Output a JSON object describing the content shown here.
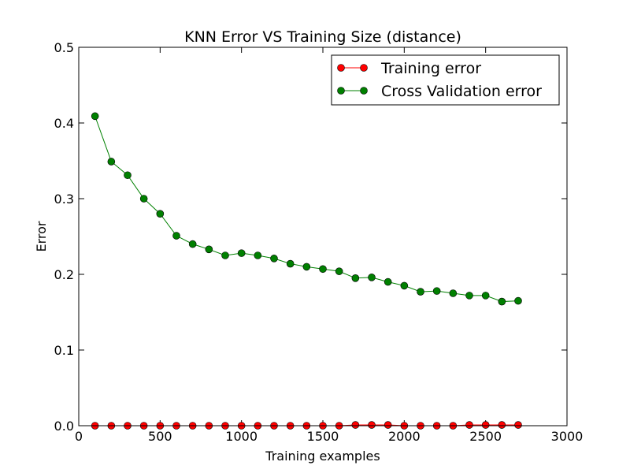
{
  "chart_data": {
    "type": "line",
    "title": "KNN Error VS Training Size (distance)",
    "xlabel": "Training examples",
    "ylabel": "Error",
    "xlim": [
      0,
      3000
    ],
    "ylim": [
      0,
      0.5
    ],
    "xticks": [
      0,
      500,
      1000,
      1500,
      2000,
      2500,
      3000
    ],
    "xtick_labels": [
      "0",
      "500",
      "1000",
      "1500",
      "2000",
      "2500",
      "3000"
    ],
    "yticks": [
      0,
      0.1,
      0.2,
      0.3,
      0.4,
      0.5
    ],
    "ytick_labels": [
      "0.0",
      "0.1",
      "0.2",
      "0.3",
      "0.4",
      "0.5"
    ],
    "grid": false,
    "legend_position": "top-right",
    "x": [
      100,
      200,
      300,
      400,
      500,
      600,
      700,
      800,
      900,
      1000,
      1100,
      1200,
      1300,
      1400,
      1500,
      1600,
      1700,
      1800,
      1900,
      2000,
      2100,
      2200,
      2300,
      2400,
      2500,
      2600,
      2700
    ],
    "series": [
      {
        "name": "Training error",
        "color": "#ff0000",
        "values": [
          0,
          0,
          0,
          0,
          0,
          0,
          0,
          0,
          0,
          0,
          0,
          0,
          0,
          0,
          0,
          0,
          0.001,
          0.001,
          0.001,
          0,
          0,
          0,
          0,
          0.001,
          0.001,
          0.001,
          0.001
        ]
      },
      {
        "name": "Cross Validation error",
        "color": "#008000",
        "values": [
          0.409,
          0.349,
          0.331,
          0.3,
          0.28,
          0.251,
          0.24,
          0.233,
          0.225,
          0.228,
          0.225,
          0.221,
          0.214,
          0.21,
          0.207,
          0.204,
          0.195,
          0.196,
          0.19,
          0.185,
          0.177,
          0.178,
          0.175,
          0.172,
          0.172,
          0.164,
          0.165
        ]
      }
    ]
  }
}
